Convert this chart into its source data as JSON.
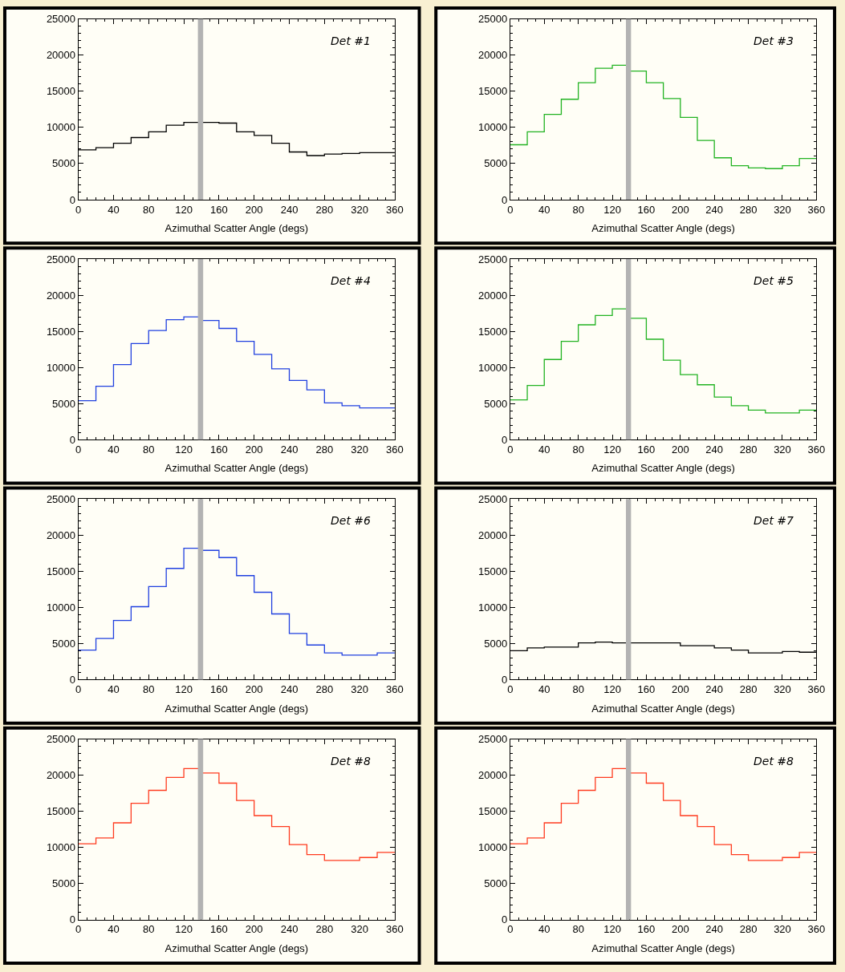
{
  "chart_data": [
    {
      "type": "histogram",
      "color": "#000000",
      "bins": [
        0,
        20,
        40,
        60,
        80,
        100,
        120,
        140,
        160,
        180,
        200,
        220,
        240,
        260,
        280,
        300,
        320,
        340,
        360
      ],
      "values": [
        6900,
        7200,
        7800,
        8600,
        9400,
        10300,
        10700,
        10700,
        10600,
        9400,
        8900,
        7800,
        6600,
        6100,
        6300,
        6400,
        6500,
        6500
      ],
      "xlabel": "Azimuthal Scatter Angle (degs)",
      "annotations": [
        "Det #1"
      ],
      "xlim": [
        0,
        360
      ],
      "ylim": [
        0,
        25000
      ],
      "xticks": [
        0,
        40,
        80,
        120,
        160,
        200,
        240,
        280,
        320,
        360
      ],
      "yticks": [
        0,
        5000,
        10000,
        15000,
        20000,
        25000
      ],
      "bands": [
        {
          "axis": "x",
          "from": 136,
          "to": 142,
          "color": "#b3b3b3"
        }
      ]
    },
    {
      "type": "histogram",
      "color": "#22b322",
      "bins": [
        0,
        20,
        40,
        60,
        80,
        100,
        120,
        140,
        160,
        180,
        200,
        220,
        240,
        260,
        280,
        300,
        320,
        340,
        360
      ],
      "values": [
        7600,
        9400,
        11800,
        13900,
        16200,
        18200,
        18600,
        17800,
        16200,
        14000,
        11400,
        8200,
        5800,
        4700,
        4400,
        4300,
        4700,
        5700
      ],
      "xlabel": "Azimuthal Scatter Angle (degs)",
      "annotations": [
        "Det #3"
      ],
      "xlim": [
        0,
        360
      ],
      "ylim": [
        0,
        25000
      ],
      "xticks": [
        0,
        40,
        80,
        120,
        160,
        200,
        240,
        280,
        320,
        360
      ],
      "yticks": [
        0,
        5000,
        10000,
        15000,
        20000,
        25000
      ],
      "bands": [
        {
          "axis": "x",
          "from": 136,
          "to": 142,
          "color": "#b3b3b3"
        }
      ]
    },
    {
      "type": "histogram",
      "color": "#2040e0",
      "bins": [
        0,
        20,
        40,
        60,
        80,
        100,
        120,
        140,
        160,
        180,
        200,
        220,
        240,
        260,
        280,
        300,
        320,
        340,
        360
      ],
      "values": [
        5400,
        7400,
        10400,
        13300,
        15100,
        16600,
        17000,
        16500,
        15400,
        13600,
        11800,
        9800,
        8200,
        6900,
        5100,
        4700,
        4400,
        4400
      ],
      "xlabel": "Azimuthal Scatter Angle (degs)",
      "annotations": [
        "Det #4"
      ],
      "xlim": [
        0,
        360
      ],
      "ylim": [
        0,
        25000
      ],
      "xticks": [
        0,
        40,
        80,
        120,
        160,
        200,
        240,
        280,
        320,
        360
      ],
      "yticks": [
        0,
        5000,
        10000,
        15000,
        20000,
        25000
      ],
      "bands": [
        {
          "axis": "x",
          "from": 136,
          "to": 142,
          "color": "#b3b3b3"
        }
      ]
    },
    {
      "type": "histogram",
      "color": "#22b322",
      "bins": [
        0,
        20,
        40,
        60,
        80,
        100,
        120,
        140,
        160,
        180,
        200,
        220,
        240,
        260,
        280,
        300,
        320,
        340,
        360
      ],
      "values": [
        5500,
        7500,
        11100,
        13600,
        15900,
        17200,
        18100,
        16800,
        13900,
        11000,
        9000,
        7600,
        5900,
        4700,
        4100,
        3700,
        3700,
        4100
      ],
      "xlabel": "Azimuthal Scatter Angle (degs)",
      "annotations": [
        "Det #5"
      ],
      "xlim": [
        0,
        360
      ],
      "ylim": [
        0,
        25000
      ],
      "xticks": [
        0,
        40,
        80,
        120,
        160,
        200,
        240,
        280,
        320,
        360
      ],
      "yticks": [
        0,
        5000,
        10000,
        15000,
        20000,
        25000
      ],
      "bands": [
        {
          "axis": "x",
          "from": 136,
          "to": 142,
          "color": "#b3b3b3"
        }
      ]
    },
    {
      "type": "histogram",
      "color": "#2040e0",
      "bins": [
        0,
        20,
        40,
        60,
        80,
        100,
        120,
        140,
        160,
        180,
        200,
        220,
        240,
        260,
        280,
        300,
        320,
        340,
        360
      ],
      "values": [
        4100,
        5700,
        8200,
        10100,
        12900,
        15400,
        18200,
        17900,
        16900,
        14400,
        12100,
        9100,
        6400,
        4800,
        3700,
        3400,
        3400,
        3700
      ],
      "xlabel": "Azimuthal Scatter Angle (degs)",
      "annotations": [
        "Det #6"
      ],
      "xlim": [
        0,
        360
      ],
      "ylim": [
        0,
        25000
      ],
      "xticks": [
        0,
        40,
        80,
        120,
        160,
        200,
        240,
        280,
        320,
        360
      ],
      "yticks": [
        0,
        5000,
        10000,
        15000,
        20000,
        25000
      ],
      "bands": [
        {
          "axis": "x",
          "from": 136,
          "to": 142,
          "color": "#b3b3b3"
        }
      ]
    },
    {
      "type": "histogram",
      "color": "#000000",
      "bins": [
        0,
        20,
        40,
        60,
        80,
        100,
        120,
        140,
        160,
        180,
        200,
        220,
        240,
        260,
        280,
        300,
        320,
        340,
        360
      ],
      "values": [
        4000,
        4400,
        4500,
        4500,
        5100,
        5200,
        5100,
        5100,
        5100,
        5100,
        4700,
        4700,
        4400,
        4100,
        3700,
        3700,
        3900,
        3800
      ],
      "xlabel": "Azimuthal Scatter Angle (degs)",
      "annotations": [
        "Det #7"
      ],
      "xlim": [
        0,
        360
      ],
      "ylim": [
        0,
        25000
      ],
      "xticks": [
        0,
        40,
        80,
        120,
        160,
        200,
        240,
        280,
        320,
        360
      ],
      "yticks": [
        0,
        5000,
        10000,
        15000,
        20000,
        25000
      ],
      "bands": [
        {
          "axis": "x",
          "from": 136,
          "to": 142,
          "color": "#b3b3b3"
        }
      ]
    },
    {
      "type": "histogram",
      "color": "#ff3b1f",
      "bins": [
        0,
        20,
        40,
        60,
        80,
        100,
        120,
        140,
        160,
        180,
        200,
        220,
        240,
        260,
        280,
        300,
        320,
        340,
        360
      ],
      "values": [
        10500,
        11300,
        13400,
        16100,
        17900,
        19700,
        20900,
        20300,
        18900,
        16500,
        14400,
        12900,
        10400,
        9000,
        8200,
        8200,
        8600,
        9300
      ],
      "xlabel": "Azimuthal Scatter Angle (degs)",
      "annotations": [
        "Det #8"
      ],
      "xlim": [
        0,
        360
      ],
      "ylim": [
        0,
        25000
      ],
      "xticks": [
        0,
        40,
        80,
        120,
        160,
        200,
        240,
        280,
        320,
        360
      ],
      "yticks": [
        0,
        5000,
        10000,
        15000,
        20000,
        25000
      ],
      "bands": [
        {
          "axis": "x",
          "from": 136,
          "to": 142,
          "color": "#b3b3b3"
        }
      ]
    },
    {
      "type": "histogram",
      "color": "#ff3b1f",
      "bins": [
        0,
        20,
        40,
        60,
        80,
        100,
        120,
        140,
        160,
        180,
        200,
        220,
        240,
        260,
        280,
        300,
        320,
        340,
        360
      ],
      "values": [
        10500,
        11300,
        13400,
        16100,
        17900,
        19700,
        20900,
        20300,
        18900,
        16500,
        14400,
        12900,
        10400,
        9000,
        8200,
        8200,
        8600,
        9300
      ],
      "xlabel": "Azimuthal Scatter Angle (degs)",
      "annotations": [
        "Det #8"
      ],
      "xlim": [
        0,
        360
      ],
      "ylim": [
        0,
        25000
      ],
      "xticks": [
        0,
        40,
        80,
        120,
        160,
        200,
        240,
        280,
        320,
        360
      ],
      "yticks": [
        0,
        5000,
        10000,
        15000,
        20000,
        25000
      ],
      "bands": [
        {
          "axis": "x",
          "from": 136,
          "to": 142,
          "color": "#b3b3b3"
        }
      ]
    }
  ]
}
